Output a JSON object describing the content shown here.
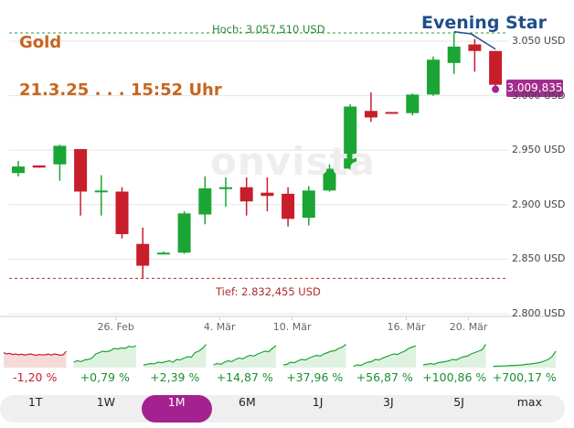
{
  "instrument": "Gold",
  "timestamp": "21.3.25 . . . 15:52 Uhr",
  "watermark": "onvista",
  "annotation": "Evening Star",
  "current_price": "3.009,835",
  "high_label": "Hoch: 3.057,510 USD",
  "low_label": "Tief: 2.832,455 USD",
  "colors": {
    "up": "#1aa535",
    "down": "#c81e2b",
    "accent": "#a3228f",
    "title": "#c8651e",
    "annotation": "#1f4e8a"
  },
  "chart_data": {
    "type": "candlestick",
    "y_unit": "USD",
    "ylim": [
      2800,
      3050
    ],
    "y_ticks": [
      "3.050 USD",
      "3.000 USD",
      "2.950 USD",
      "2.900 USD",
      "2.850 USD",
      "2.800 USD"
    ],
    "y_tick_values": [
      3050,
      3000,
      2950,
      2900,
      2850,
      2800
    ],
    "x_ticks": [
      "26. Feb",
      "4. Mär",
      "10. Mär",
      "16. Mär",
      "20. Mär"
    ],
    "x_tick_index": [
      4.7,
      9.7,
      13.2,
      18.7,
      21.7
    ],
    "high": 3057.51,
    "low": 2832.455,
    "candles": [
      {
        "o": 2929,
        "h": 2940,
        "l": 2926,
        "c": 2935
      },
      {
        "o": 2936,
        "h": 2936,
        "l": 2934,
        "c": 2934
      },
      {
        "o": 2937,
        "h": 2955,
        "l": 2922,
        "c": 2954
      },
      {
        "o": 2951,
        "h": 2951,
        "l": 2890,
        "c": 2912
      },
      {
        "o": 2913,
        "h": 2927,
        "l": 2890,
        "c": 2913
      },
      {
        "o": 2912,
        "h": 2916,
        "l": 2869,
        "c": 2873
      },
      {
        "o": 2864,
        "h": 2879,
        "l": 2832,
        "c": 2844
      },
      {
        "o": 2856,
        "h": 2857,
        "l": 2855,
        "c": 2856
      },
      {
        "o": 2856,
        "h": 2894,
        "l": 2855,
        "c": 2892
      },
      {
        "o": 2891,
        "h": 2926,
        "l": 2882,
        "c": 2915
      },
      {
        "o": 2915,
        "h": 2925,
        "l": 2898,
        "c": 2916
      },
      {
        "o": 2916,
        "h": 2925,
        "l": 2890,
        "c": 2903
      },
      {
        "o": 2911,
        "h": 2925,
        "l": 2894,
        "c": 2908
      },
      {
        "o": 2910,
        "h": 2916,
        "l": 2880,
        "c": 2887
      },
      {
        "o": 2888,
        "h": 2917,
        "l": 2881,
        "c": 2913
      },
      {
        "o": 2913,
        "h": 2937,
        "l": 2912,
        "c": 2933
      },
      {
        "o": 2933,
        "h": 2992,
        "l": 2932,
        "c": 2990
      },
      {
        "o": 2986,
        "h": 3003,
        "l": 2976,
        "c": 2980
      },
      {
        "o": 2985,
        "h": 2985,
        "l": 2984,
        "c": 2984
      },
      {
        "o": 2984,
        "h": 3002,
        "l": 2982,
        "c": 3001
      },
      {
        "o": 3001,
        "h": 3036,
        "l": 3000,
        "c": 3033
      },
      {
        "o": 3030,
        "h": 3057,
        "l": 3020,
        "c": 3045
      },
      {
        "o": 3047,
        "h": 3052,
        "l": 3022,
        "c": 3041
      },
      {
        "o": 3041,
        "h": 3041,
        "l": 3005,
        "c": 3010
      }
    ]
  },
  "performance": [
    {
      "value": "-1,20 %",
      "trend": "down",
      "spark": [
        0.55,
        0.5,
        0.52,
        0.48,
        0.5,
        0.47,
        0.49,
        0.46,
        0.48,
        0.5,
        0.47,
        0.45,
        0.48,
        0.46,
        0.47,
        0.49,
        0.46,
        0.5,
        0.48,
        0.45,
        0.47,
        0.6
      ]
    },
    {
      "value": "+0,79 %",
      "trend": "up",
      "spark": [
        0.2,
        0.25,
        0.22,
        0.28,
        0.3,
        0.35,
        0.5,
        0.55,
        0.6,
        0.58,
        0.62,
        0.7,
        0.68,
        0.72,
        0.7,
        0.78,
        0.75,
        0.8
      ]
    },
    {
      "value": "+2,39 %",
      "trend": "up",
      "spark": [
        0.1,
        0.12,
        0.15,
        0.14,
        0.2,
        0.18,
        0.22,
        0.25,
        0.2,
        0.3,
        0.28,
        0.35,
        0.4,
        0.38,
        0.55,
        0.6,
        0.7,
        0.85
      ]
    },
    {
      "value": "+14,87 %",
      "trend": "up",
      "spark": [
        0.1,
        0.15,
        0.12,
        0.2,
        0.25,
        0.22,
        0.3,
        0.35,
        0.32,
        0.4,
        0.45,
        0.42,
        0.5,
        0.55,
        0.6,
        0.58,
        0.7,
        0.8
      ]
    },
    {
      "value": "+37,96 %",
      "trend": "up",
      "spark": [
        0.1,
        0.12,
        0.2,
        0.18,
        0.25,
        0.3,
        0.28,
        0.35,
        0.4,
        0.45,
        0.42,
        0.5,
        0.55,
        0.6,
        0.62,
        0.7,
        0.75,
        0.85
      ]
    },
    {
      "value": "+56,87 %",
      "trend": "up",
      "spark": [
        0.05,
        0.1,
        0.08,
        0.15,
        0.2,
        0.22,
        0.3,
        0.28,
        0.35,
        0.4,
        0.45,
        0.5,
        0.48,
        0.55,
        0.6,
        0.7,
        0.75,
        0.8
      ]
    },
    {
      "value": "+100,86 %",
      "trend": "up",
      "spark": [
        0.1,
        0.12,
        0.15,
        0.12,
        0.18,
        0.2,
        0.22,
        0.25,
        0.3,
        0.28,
        0.35,
        0.4,
        0.42,
        0.5,
        0.55,
        0.6,
        0.65,
        0.85
      ]
    },
    {
      "value": "+700,17 %",
      "trend": "up",
      "spark": [
        0.05,
        0.05,
        0.06,
        0.06,
        0.07,
        0.08,
        0.08,
        0.09,
        0.1,
        0.12,
        0.13,
        0.15,
        0.17,
        0.2,
        0.25,
        0.3,
        0.4,
        0.6
      ]
    }
  ],
  "tabs": [
    {
      "label": "1T",
      "active": false
    },
    {
      "label": "1W",
      "active": false
    },
    {
      "label": "1M",
      "active": true
    },
    {
      "label": "6M",
      "active": false
    },
    {
      "label": "1J",
      "active": false
    },
    {
      "label": "3J",
      "active": false
    },
    {
      "label": "5J",
      "active": false
    },
    {
      "label": "max",
      "active": false
    }
  ]
}
